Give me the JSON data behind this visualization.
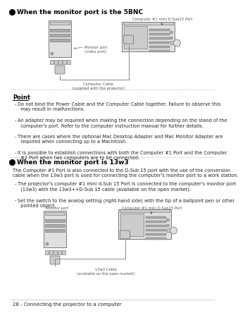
{
  "bg_color": "#ffffff",
  "title_section1": "When the monitor port is the 5BNC",
  "title_section2": "When the monitor port is 13w3",
  "point_label": "Point",
  "point_bullets": [
    "Do not bind the Power Cable and the Computer Cable together. Failure to observe this\n  may result in malfunctions.",
    "An adapter may be required when making the connection depending on the stand of the\n  computer's port. Refer to the computer instruction manual for further details.",
    "There are cases where the optional Mac Desktop Adapter and Mac Monitor Adapter are\n  required when connecting up to a Macintosh.",
    "It is possible to establish connections with both the Computer #1 Port and the Computer\n  #2 Port when two computers are to be connected."
  ],
  "section2_intro": "The Computer #1 Port is also connected to the D-Sub 15 port with the use of the conversion\ncable when the 13w3 port is used for connecting the computer's monitor port to a work station.",
  "section2_bullets": [
    "The projector's computer #1 mini d-Sub 15 Port is connected to the computer's monitor port\n  (13w3) with the 13w3++D-Sub 15 cable (available on the open market).",
    "Set the switch to the analog setting (right-hand side) with the tip of a ballpoint pen or other\n  pointed object."
  ],
  "footer_text": "28 - Connecting the projector to a computer",
  "diag1_top_label": "Computer #1 mini D-Sub15 Port",
  "diag1_monitor_label": "Monitor port\n(video port)",
  "diag1_cable_label": "Computer Cable\n(supplied with the projector)",
  "diag2_monitor_label": "Monitor port",
  "diag2_top_label": "Computer #1 mini D-Sub15 Port",
  "diag2_cable_label": "13w3 Cable\n(available on the open market)",
  "ec": "#666666",
  "fc_light": "#e0e0e0",
  "fc_mid": "#cccccc",
  "fc_dark": "#aaaaaa",
  "lw_main": 0.6,
  "text_color": "#222222",
  "label_color": "#555555"
}
